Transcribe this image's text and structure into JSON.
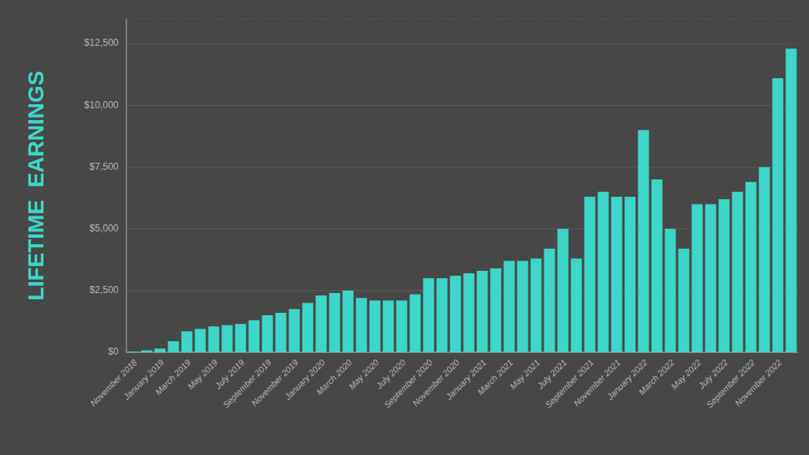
{
  "chart_data": {
    "type": "bar",
    "y_label": "LIFETIME  EARNINGS",
    "categories": [
      "November 2018",
      null,
      "January 2019",
      null,
      "March 2019",
      null,
      "May 2019",
      null,
      "July 2019",
      null,
      "September 2019",
      null,
      "November 2019",
      null,
      "January 2020",
      null,
      "March 2020",
      null,
      "May 2020",
      null,
      "July 2020",
      null,
      "September 2020",
      null,
      "November 2020",
      null,
      "January 2021",
      null,
      "March 2021",
      null,
      "May 2021",
      null,
      "July 2021",
      null,
      "September 2021",
      null,
      "November 2021",
      null,
      "January 2022",
      null,
      "March 2022",
      null,
      "May 2022",
      null,
      "July 2022",
      null,
      "September 2022",
      null,
      "November 2022",
      null
    ],
    "values": [
      30,
      80,
      150,
      450,
      850,
      950,
      1050,
      1100,
      1150,
      1300,
      1500,
      1600,
      1750,
      2000,
      2300,
      2400,
      2500,
      2200,
      2100,
      2100,
      2100,
      2350,
      3000,
      3000,
      3100,
      3200,
      3300,
      3400,
      3700,
      3700,
      3800,
      4200,
      5000,
      3800,
      6300,
      6500,
      6300,
      6300,
      9000,
      7000,
      5000,
      4200,
      6000,
      6000,
      6200,
      6500,
      6900,
      7500,
      11100,
      12300
    ],
    "color": "#3dd6c8",
    "ylim": [
      0,
      13500
    ],
    "yticks": [
      {
        "value": 0,
        "label": "$0"
      },
      {
        "value": 2500,
        "label": "$2,500"
      },
      {
        "value": 5000,
        "label": "$5,000"
      },
      {
        "value": 7500,
        "label": "$7,500"
      },
      {
        "value": 10000,
        "label": "$10,000"
      },
      {
        "value": 12500,
        "label": "$12,500"
      }
    ],
    "grid": true
  }
}
